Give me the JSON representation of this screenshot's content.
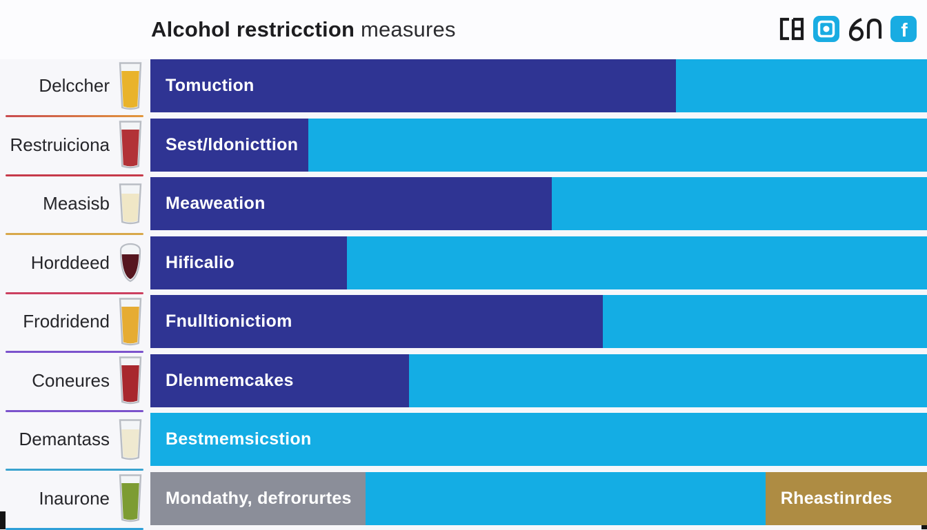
{
  "header": {
    "title_bold": "Alcohol restricction",
    "title_regular": "measures",
    "social": [
      {
        "name": "camera-glyph-icon",
        "style": "outline-black"
      },
      {
        "name": "instagram-icon",
        "style": "filled-blue"
      },
      {
        "name": "numeral-glyph-icon",
        "style": "outline-black"
      },
      {
        "name": "facebook-icon",
        "style": "filled-blue",
        "letter": "f"
      }
    ]
  },
  "colors": {
    "dark_blue": "#2f3493",
    "light_blue": "#14ade4",
    "gray": "#8b8e99",
    "gold": "#ae8c43",
    "social_blue": "#19ace2",
    "glyph_black": "#1b1b1d"
  },
  "rows": [
    {
      "side_label": "Delccher",
      "drink_icon": "beer-glass-icon",
      "glass": {
        "shape": "tall",
        "liquid": "#e9b32b"
      },
      "underline": [
        "#c94b4f",
        "#e2973c"
      ],
      "segments": [
        {
          "color": "dark_blue",
          "pct": 67.7,
          "label": "Tomuction"
        },
        {
          "color": "light_blue",
          "pct": 32.3,
          "label": ""
        }
      ]
    },
    {
      "side_label": "Restruiciona",
      "drink_icon": "red-drink-glass-icon",
      "glass": {
        "shape": "tall",
        "liquid": "#b23237"
      },
      "underline": [
        "#c63a4a"
      ],
      "segments": [
        {
          "color": "dark_blue",
          "pct": 20.3,
          "label": "Sest/ldonicttion"
        },
        {
          "color": "light_blue",
          "pct": 79.7,
          "label": ""
        }
      ]
    },
    {
      "side_label": "Measisb",
      "drink_icon": "white-wine-glass-icon",
      "glass": {
        "shape": "short",
        "liquid": "#f0e7c6"
      },
      "underline": [
        "#d8a84a"
      ],
      "segments": [
        {
          "color": "dark_blue",
          "pct": 51.7,
          "label": "Meaweation"
        },
        {
          "color": "light_blue",
          "pct": 48.3,
          "label": ""
        }
      ]
    },
    {
      "side_label": "Horddeed",
      "drink_icon": "red-wine-glass-icon",
      "glass": {
        "shape": "round",
        "liquid": "#56161f"
      },
      "underline": [
        "#cc4060"
      ],
      "segments": [
        {
          "color": "dark_blue",
          "pct": 25.3,
          "label": "Hificalio"
        },
        {
          "color": "light_blue",
          "pct": 74.7,
          "label": ""
        }
      ]
    },
    {
      "side_label": "Frodridend",
      "drink_icon": "beer-glass-icon",
      "glass": {
        "shape": "tall",
        "liquid": "#e6ac33"
      },
      "underline": [
        "#7b52cc"
      ],
      "segments": [
        {
          "color": "dark_blue",
          "pct": 58.3,
          "label": "Fnulltionictiom"
        },
        {
          "color": "light_blue",
          "pct": 41.7,
          "label": ""
        }
      ]
    },
    {
      "side_label": "Coneures",
      "drink_icon": "red-drink-glass-icon",
      "glass": {
        "shape": "tall",
        "liquid": "#a8282e"
      },
      "underline": [
        "#7b52cc"
      ],
      "segments": [
        {
          "color": "dark_blue",
          "pct": 33.3,
          "label": "Dlenmemcakes"
        },
        {
          "color": "light_blue",
          "pct": 66.7,
          "label": ""
        }
      ]
    },
    {
      "side_label": "Demantass",
      "drink_icon": "white-wine-glass-icon",
      "glass": {
        "shape": "short",
        "liquid": "#efe9d0"
      },
      "underline": [
        "#3aa3cf"
      ],
      "segments": [
        {
          "color": "light_blue",
          "pct": 100,
          "label": "Bestmemsicstion"
        }
      ]
    },
    {
      "side_label": "Inaurone",
      "drink_icon": "green-drink-glass-icon",
      "glass": {
        "shape": "tall",
        "liquid": "#7d9c33"
      },
      "underline": [
        "#2e9fd8"
      ],
      "segments": [
        {
          "color": "gray",
          "pct": 27.7,
          "label": "Mondathy, defrorurtes"
        },
        {
          "color": "light_blue",
          "pct": 51.5,
          "label": ""
        },
        {
          "color": "gold",
          "pct": 20.8,
          "label": "Rheastinrdes"
        }
      ]
    }
  ],
  "chart_data": {
    "type": "bar",
    "orientation": "horizontal-stacked",
    "title": "Alcohol restricction measures",
    "categories": [
      "Delccher",
      "Restruiciona",
      "Measisb",
      "Horddeed",
      "Frodridend",
      "Coneures",
      "Demantass",
      "Inaurone"
    ],
    "bar_labels": [
      "Tomuction",
      "Sest/ldonicttion",
      "Meaweation",
      "Hificalio",
      "Fnulltionictiom",
      "Dlenmemcakes",
      "Bestmemsicstion",
      "Mondathy, defrorurtes"
    ],
    "series": [
      {
        "name": "dark blue segment (% of bar width)",
        "values": [
          67.7,
          20.3,
          51.7,
          25.3,
          58.3,
          33.3,
          0,
          0
        ]
      },
      {
        "name": "gray segment (% of bar width)",
        "values": [
          0,
          0,
          0,
          0,
          0,
          0,
          0,
          27.7
        ]
      },
      {
        "name": "light blue segment (% of bar width)",
        "values": [
          32.3,
          79.7,
          48.3,
          74.7,
          41.7,
          66.7,
          100,
          51.5
        ]
      },
      {
        "name": "gold segment (% of bar width)",
        "values": [
          0,
          0,
          0,
          0,
          0,
          0,
          0,
          20.8
        ]
      }
    ],
    "annotations": [
      "Rheastinrdes (label inside gold segment of last bar)"
    ],
    "xlim": [
      0,
      100
    ],
    "legend": "none",
    "grid": false,
    "axis_tick_labels": "none visible"
  }
}
